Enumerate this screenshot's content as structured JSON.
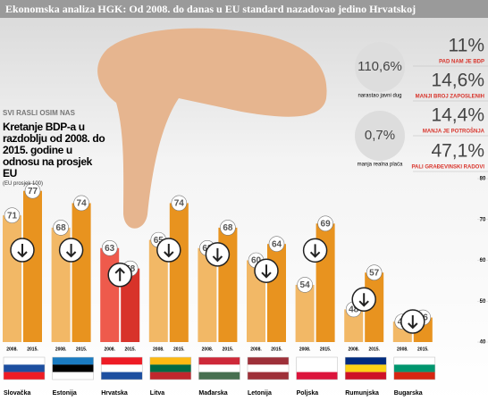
{
  "chart_data": {
    "type": "bar",
    "title": "Ekonomska analiza HGK: Od 2008. do danas u EU standard nazadovao jedino Hrvatskoj",
    "kicker": "SVI RASLI OSIM NAS",
    "subtitle": "Kretanje BDP-a u razdoblju od 2008. do 2015. godine u odnosu na prosjek EU",
    "note": "(EU prosjek 100)",
    "categories": [
      "Slovačka",
      "Estonija",
      "Hrvatska",
      "Litva",
      "Mađarska",
      "Letonija",
      "Poljska",
      "Rumunjska",
      "Bugarska"
    ],
    "series": [
      {
        "name": "2008.",
        "colors": [
          "#f2b866",
          "#f2b866",
          "#ee5a4c",
          "#f2b866",
          "#f2b866",
          "#f2b866",
          "#f2b866",
          "#f2b866",
          "#f2b866"
        ],
        "values": [
          71,
          68,
          63,
          65,
          63,
          60,
          54,
          48,
          45
        ]
      },
      {
        "name": "2015.",
        "colors": [
          "#e8931f",
          "#e8931f",
          "#d8332a",
          "#e8931f",
          "#e8931f",
          "#e8931f",
          "#e8931f",
          "#e8931f",
          "#e8931f"
        ],
        "values": [
          77,
          74,
          58,
          74,
          68,
          64,
          69,
          57,
          46
        ]
      }
    ],
    "ylim": [
      40,
      80
    ],
    "yticks": [
      40,
      50,
      60,
      70,
      80
    ],
    "grid": false
  },
  "stats": {
    "circles": [
      {
        "value": "110,6%",
        "label": "narastao javni dug"
      },
      {
        "value": "0,7%",
        "label": "manja realna plaća"
      }
    ],
    "list": [
      {
        "value": "11%",
        "label": "PAD NAM JE BDP"
      },
      {
        "value": "14,6%",
        "label": "MANJI BROJ ZAPOSLENIH"
      },
      {
        "value": "14,4%",
        "label": "MANJA JE POTROŠNJA"
      },
      {
        "value": "47,1%",
        "label": "PALI GRAĐEVINSKI RADOVI"
      }
    ]
  }
}
